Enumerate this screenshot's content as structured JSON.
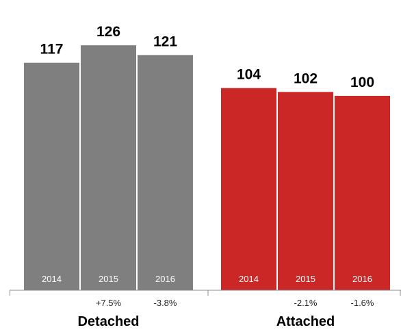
{
  "chart_data": {
    "type": "bar",
    "ylim": [
      0,
      130
    ],
    "grid": false,
    "groups": [
      {
        "name": "Detached",
        "color": "#7f7f7f",
        "categories": [
          "2014",
          "2015",
          "2016"
        ],
        "values": [
          117,
          126,
          121
        ],
        "changes": [
          "",
          "+7.5%",
          "-3.8%"
        ]
      },
      {
        "name": "Attached",
        "color": "#cc2727",
        "categories": [
          "2014",
          "2015",
          "2016"
        ],
        "values": [
          104,
          102,
          100
        ],
        "changes": [
          "",
          "-2.1%",
          "-1.6%"
        ]
      }
    ]
  }
}
